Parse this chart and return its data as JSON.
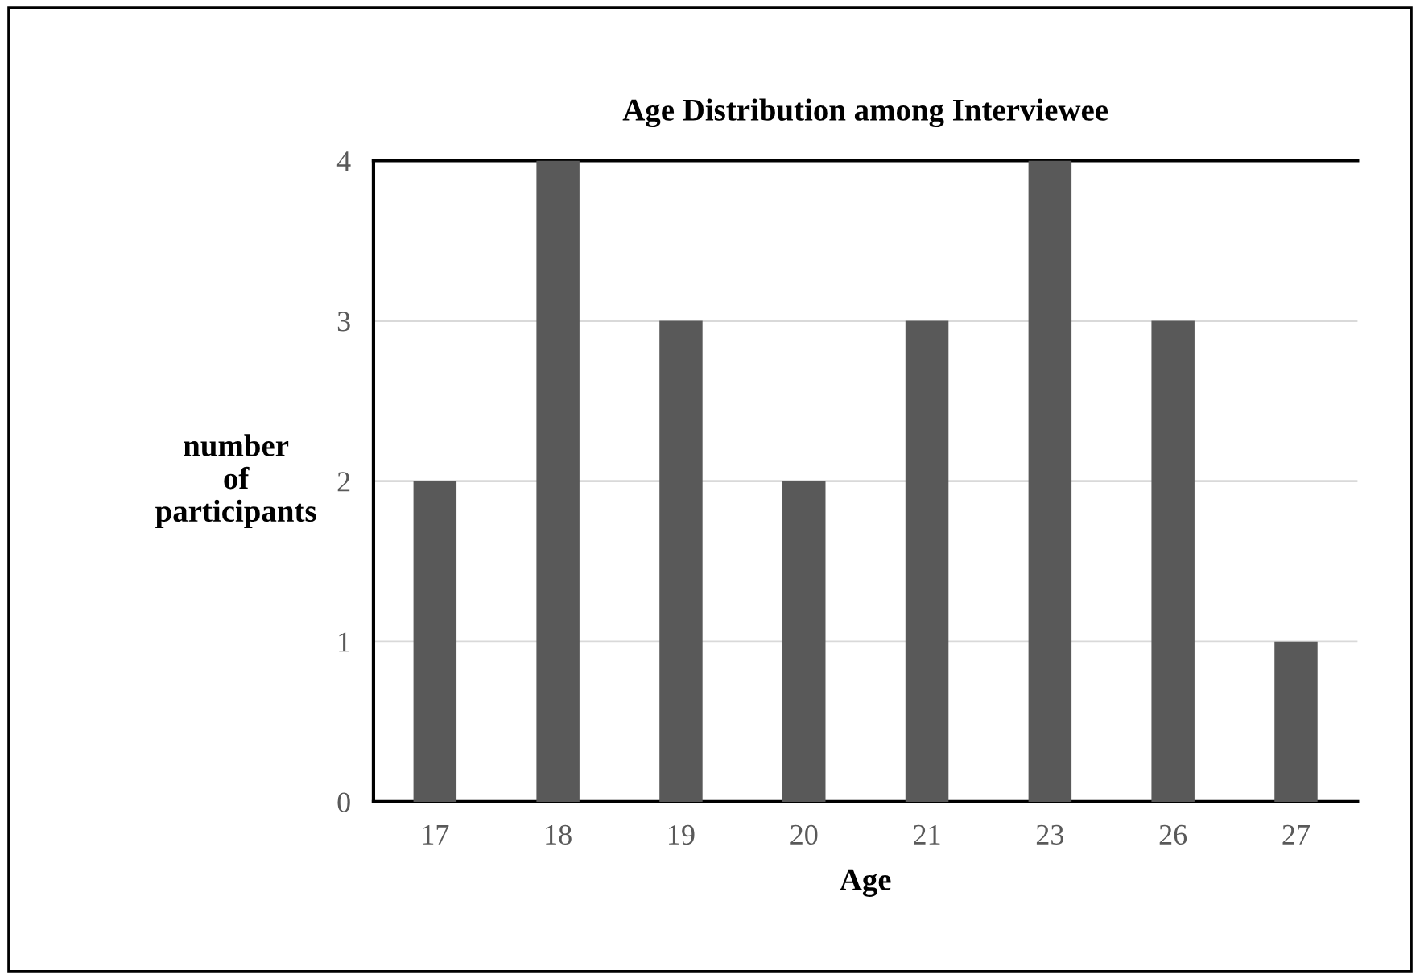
{
  "chart_data": {
    "type": "bar",
    "title": "Age Distribution among Interviewee",
    "xlabel": "Age",
    "ylabel": "number\nof\nparticipants",
    "categories": [
      "17",
      "18",
      "19",
      "20",
      "21",
      "23",
      "26",
      "27"
    ],
    "values": [
      2,
      4,
      3,
      2,
      3,
      4,
      3,
      1
    ],
    "color": "#595959",
    "ylim": [
      0,
      4
    ],
    "yticks": [
      0,
      1,
      2,
      3,
      4
    ],
    "grid": "y",
    "legend": false
  }
}
